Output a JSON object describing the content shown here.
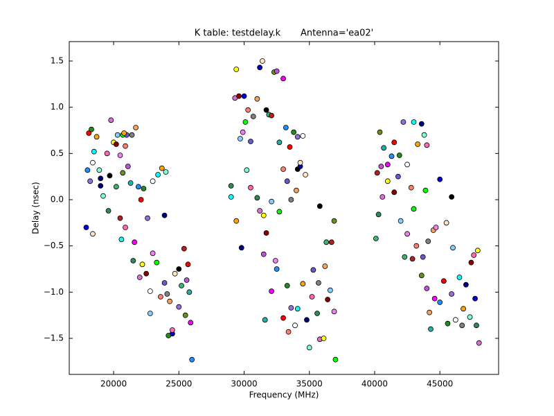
{
  "chart_data": {
    "type": "scatter",
    "title": "K table: testdelay.k       Antenna='ea02'",
    "x_label": "Frequency (MHz)",
    "y_label": "Delay (nsec)",
    "xlim": [
      16600,
      49500
    ],
    "ylim": [
      -1.89,
      1.71
    ],
    "xticks": [
      20000,
      25000,
      30000,
      35000,
      40000,
      45000
    ],
    "yticks": [
      {
        "value": -1.5,
        "label": "−1.5"
      },
      {
        "value": -1.0,
        "label": "−1.0"
      },
      {
        "value": -0.5,
        "label": "−0.5"
      },
      {
        "value": 0,
        "label": "0.0"
      },
      0.5,
      {
        "value": 1.0,
        "label": "1.0"
      },
      1.5
    ],
    "grid": false,
    "colors": [
      "#1e90ff",
      "#ff0000",
      "#228b22",
      "#9370db",
      "#ffffff",
      "#00ffff",
      "#ffa500",
      "#000080",
      "#7fffd4",
      "#ff69b4",
      "#2e8b57",
      "#da70d6",
      "#ffff00",
      "#8b0000",
      "#87cefa",
      "#ee82ee",
      "#00ff00",
      "#fa8072",
      "#6a5acd",
      "#808080",
      "#f4a460",
      "#0000cd",
      "#ffe4c4",
      "#000000",
      "#3cb371",
      "#b22222",
      "#6b8e23",
      "#ba55d3",
      "#20b2aa",
      "#ff00ff"
    ],
    "x": [
      18000,
      18100,
      18300,
      18200,
      18400,
      18500,
      18700,
      19000,
      19200,
      19500,
      19600,
      19800,
      20000,
      20200,
      20300,
      20500,
      20700,
      20900,
      21000,
      21400,
      21700,
      17900,
      18400,
      19700,
      20200,
      20500,
      20700,
      21100,
      21300,
      21600,
      21900,
      22100,
      22300,
      22600,
      23000,
      23400,
      23700,
      23900,
      24000,
      20900,
      21500,
      22000,
      22200,
      22500,
      22800,
      23000,
      23300,
      23600,
      23900,
      24100,
      24300,
      24500,
      24700,
      25000,
      25200,
      25400,
      25500,
      25600,
      25800,
      25900,
      26000,
      25700,
      24200,
      25000,
      22800,
      20600,
      20800,
      19000,
      18900,
      24500,
      29000,
      29300,
      29400,
      29600,
      29700,
      29900,
      30100,
      30300,
      30500,
      30700,
      31000,
      31200,
      31400,
      31700,
      31900,
      32100,
      32300,
      32500,
      32700,
      33000,
      33200,
      33500,
      33800,
      34100,
      34500,
      29000,
      29400,
      29800,
      30200,
      30500,
      31000,
      31200,
      31500,
      31700,
      32100,
      32400,
      32700,
      33000,
      33300,
      33600,
      34000,
      34300,
      34700,
      35800,
      36300,
      36700,
      36900,
      31500,
      31600,
      32100,
      32500,
      33000,
      33300,
      33600,
      33900,
      34100,
      34500,
      34800,
      35000,
      35200,
      35600,
      35800,
      36100,
      36400,
      36600,
      36900,
      37000,
      33400,
      35300,
      35700,
      36200,
      30000,
      34300,
      34100,
      40100,
      40200,
      40400,
      40500,
      40700,
      41000,
      41300,
      41500,
      41900,
      42200,
      42500,
      43000,
      43300,
      43600,
      43800,
      44000,
      40300,
      40600,
      41000,
      41500,
      42000,
      42500,
      43000,
      43200,
      43700,
      44100,
      44500,
      45000,
      45500,
      45900,
      42300,
      42900,
      43600,
      44000,
      44300,
      44600,
      45000,
      45300,
      45600,
      45900,
      46200,
      46500,
      46800,
      47000,
      47300,
      47600,
      47800,
      48000,
      47900,
      47400,
      46000,
      44700,
      43900,
      42800,
      41800,
      46700,
      44200,
      47700
    ],
    "values": [
      0.32,
      0.72,
      0.76,
      0.2,
      0.4,
      0.52,
      0.68,
      0.15,
      0.04,
      0.5,
      -0.12,
      0.86,
      0.62,
      0.6,
      0.7,
      0.48,
      0.7,
      0.58,
      0.7,
      0.7,
      0.78,
      -0.3,
      -0.37,
      0.26,
      0.14,
      -0.2,
      0.29,
      0.36,
      0.18,
      -0.46,
      0.14,
      0.0,
      0.12,
      -0.2,
      0.2,
      0.27,
      0.34,
      -0.17,
      0.3,
      -0.3,
      -0.66,
      -0.84,
      -0.7,
      -0.8,
      -1.23,
      -0.58,
      -0.68,
      -1.05,
      -0.9,
      -1.02,
      -1.1,
      -1.45,
      -0.8,
      -0.75,
      -0.93,
      -0.53,
      -1.25,
      -0.87,
      -1.0,
      -1.33,
      -1.73,
      -0.7,
      -1.47,
      -1.16,
      -0.99,
      -0.43,
      0.72,
      0.23,
      0.32,
      -1.41,
      0.15,
      1.1,
      1.41,
      1.12,
      0.66,
      0.73,
      0.84,
      0.97,
      0.63,
      0.9,
      1.09,
      1.43,
      1.5,
      0.97,
      0.92,
      0.91,
      1.38,
      1.39,
      0.62,
      1.31,
      0.78,
      0.57,
      0.73,
      0.68,
      0.69,
      0.03,
      -0.23,
      -0.52,
      0.32,
      0.13,
      0.02,
      -0.12,
      -0.17,
      -0.36,
      -0.02,
      -0.66,
      -0.13,
      0.33,
      0.2,
      0.0,
      0.1,
      0.36,
      0.27,
      -0.07,
      -0.46,
      -0.46,
      -0.23,
      -0.59,
      -1.3,
      -0.99,
      -0.75,
      -1.28,
      -0.93,
      -1.17,
      -1.36,
      -1.18,
      -0.91,
      -1.3,
      -1.6,
      -1.05,
      -1.23,
      -1.51,
      -1.5,
      -1.08,
      -0.98,
      -1.21,
      -1.73,
      -1.43,
      -0.76,
      -0.9,
      -0.72,
      1.12,
      0.4,
      0.33,
      -0.42,
      0.29,
      0.73,
      0.36,
      0.56,
      0.38,
      0.47,
      0.62,
      0.48,
      0.84,
      0.38,
      0.84,
      0.6,
      0.82,
      0.7,
      0.59,
      -0.16,
      0.03,
      0.2,
      0.08,
      -0.23,
      -0.37,
      -0.1,
      -0.5,
      -0.62,
      -0.45,
      -0.33,
      0.22,
      -0.25,
      0.03,
      -0.62,
      -0.64,
      -0.82,
      -0.96,
      -1.4,
      -1.07,
      -1.11,
      -0.88,
      -1.34,
      -1.02,
      -1.3,
      -0.84,
      -1.18,
      -0.92,
      -1.27,
      -0.6,
      -1.36,
      -1.55,
      -0.55,
      -0.68,
      -0.52,
      -0.3,
      0.1,
      0.13,
      0.25,
      -1.36,
      -1.22,
      -1.07
    ]
  }
}
